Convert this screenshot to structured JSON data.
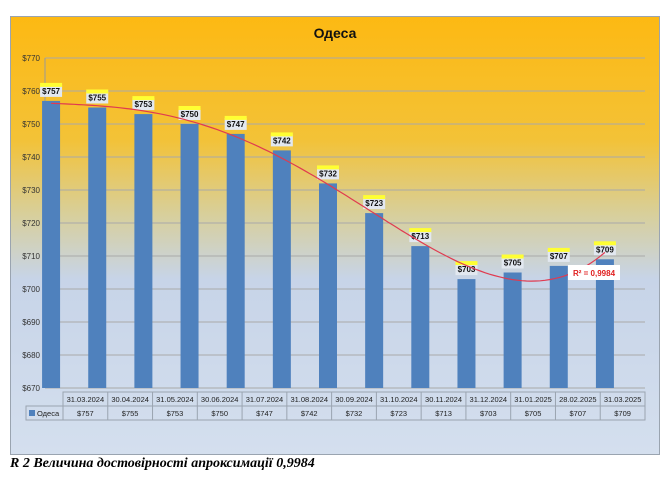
{
  "chart_data": {
    "type": "bar",
    "title": "Одеса",
    "categories": [
      "31.03.2024",
      "30.04.2024",
      "31.05.2024",
      "30.06.2024",
      "31.07.2024",
      "31.08.2024",
      "30.09.2024",
      "31.10.2024",
      "30.11.2024",
      "31.12.2024",
      "31.01.2025",
      "28.02.2025",
      "31.03.2025"
    ],
    "series": [
      {
        "name": "Одеса",
        "values": [
          757,
          755,
          753,
          750,
          747,
          742,
          732,
          723,
          713,
          703,
          705,
          707,
          709
        ],
        "color": "#4f81bd"
      }
    ],
    "value_labels": [
      "$757",
      "$755",
      "$753",
      "$750",
      "$747",
      "$742",
      "$732",
      "$723",
      "$713",
      "$703",
      "$705",
      "$707",
      "$709"
    ],
    "yticks": [
      "$670",
      "$680",
      "$690",
      "$700",
      "$710",
      "$720",
      "$730",
      "$740",
      "$750",
      "$760",
      "$770"
    ],
    "ylim": [
      670,
      770
    ],
    "grid": true,
    "trendline": {
      "type": "polynomial",
      "color": "#e03a50",
      "r2_label": "R² = 0,9984"
    },
    "data_table": true
  },
  "caption": "R 2 Величина достовірності апроксимації 0,9984"
}
